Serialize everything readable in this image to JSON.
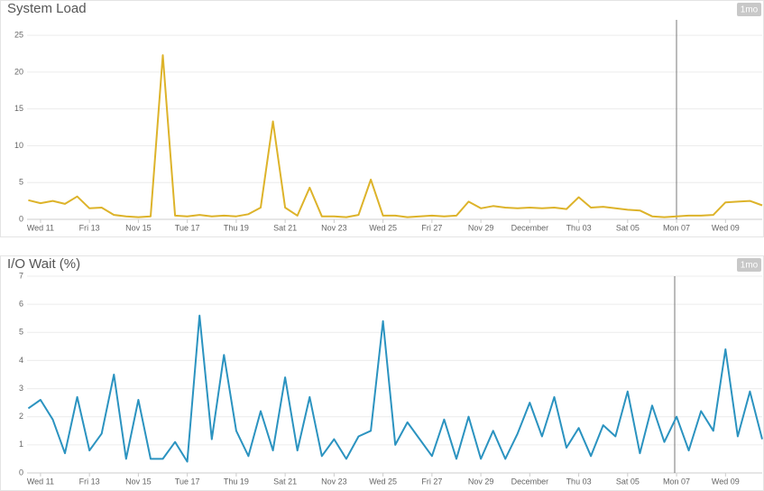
{
  "chart_data": [
    {
      "type": "line",
      "title": "System Load",
      "range_label": "1mo",
      "color": "#ddb32a",
      "grid": true,
      "x": [
        -0.5,
        0,
        0.5,
        1,
        1.5,
        2,
        2.5,
        3,
        3.5,
        4,
        4.5,
        5,
        5.5,
        6,
        6.5,
        7,
        7.5,
        8,
        8.5,
        9,
        9.5,
        10,
        10.5,
        11,
        11.5,
        12,
        12.5,
        13,
        13.5,
        14,
        14.5,
        15,
        15.5,
        16,
        16.5,
        17,
        17.5,
        18,
        18.5,
        19,
        19.5,
        20,
        20.5,
        21,
        21.5,
        22,
        22.5,
        23,
        23.5,
        24,
        24.5,
        25,
        25.5,
        26,
        26.5,
        27,
        27.5,
        28,
        28.5,
        29,
        29.5
      ],
      "values": [
        2.6,
        2.2,
        2.5,
        2.1,
        3.1,
        1.5,
        1.6,
        0.6,
        0.4,
        0.3,
        0.4,
        22.3,
        0.5,
        0.4,
        0.6,
        0.4,
        0.5,
        0.4,
        0.7,
        1.6,
        13.3,
        1.6,
        0.5,
        4.3,
        0.4,
        0.4,
        0.3,
        0.6,
        5.4,
        0.5,
        0.5,
        0.3,
        0.4,
        0.5,
        0.4,
        0.5,
        2.4,
        1.5,
        1.8,
        1.6,
        1.5,
        1.6,
        1.5,
        1.6,
        1.4,
        3.0,
        1.6,
        1.7,
        1.5,
        1.3,
        1.2,
        0.4,
        0.3,
        0.4,
        0.5,
        0.5,
        0.6,
        2.3,
        2.4,
        2.5,
        1.9
      ],
      "xlim": [
        -0.55,
        29.5
      ],
      "ylim": [
        0,
        27.1
      ],
      "yticks": [
        0,
        5,
        10,
        15,
        20,
        25
      ],
      "xticks": [
        {
          "value": 0,
          "label": "Wed 11"
        },
        {
          "value": 2,
          "label": "Fri 13"
        },
        {
          "value": 4,
          "label": "Nov 15"
        },
        {
          "value": 6,
          "label": "Tue 17"
        },
        {
          "value": 8,
          "label": "Thu 19"
        },
        {
          "value": 10,
          "label": "Sat 21"
        },
        {
          "value": 12,
          "label": "Nov 23"
        },
        {
          "value": 14,
          "label": "Wed 25"
        },
        {
          "value": 16,
          "label": "Fri 27"
        },
        {
          "value": 18,
          "label": "Nov 29"
        },
        {
          "value": 20,
          "label": "December"
        },
        {
          "value": 22,
          "label": "Thu 03"
        },
        {
          "value": 24,
          "label": "Sat 05"
        },
        {
          "value": 26,
          "label": "Mon 07"
        },
        {
          "value": 28,
          "label": "Wed 09"
        }
      ]
    },
    {
      "type": "line",
      "title": "I/O Wait (%)",
      "range_label": "1mo",
      "color": "#2b93c0",
      "grid": true,
      "x": [
        -0.5,
        0,
        0.5,
        1,
        1.5,
        2,
        2.5,
        3,
        3.5,
        4,
        4.5,
        5,
        5.5,
        6,
        6.5,
        7,
        7.5,
        8,
        8.5,
        9,
        9.5,
        10,
        10.5,
        11,
        11.5,
        12,
        12.5,
        13,
        13.5,
        14,
        14.5,
        15,
        15.5,
        16,
        16.5,
        17,
        17.5,
        18,
        18.5,
        19,
        19.5,
        20,
        20.5,
        21,
        21.5,
        22,
        22.5,
        23,
        23.5,
        24,
        24.5,
        25,
        25.5,
        26,
        26.5,
        27,
        27.5,
        28,
        28.5,
        29,
        29.5
      ],
      "values": [
        2.3,
        2.6,
        1.9,
        0.7,
        2.7,
        0.8,
        1.4,
        3.5,
        0.5,
        2.6,
        0.5,
        0.5,
        1.1,
        0.4,
        5.6,
        1.2,
        4.2,
        1.5,
        0.6,
        2.2,
        0.8,
        3.4,
        0.8,
        2.7,
        0.6,
        1.2,
        0.5,
        1.3,
        1.5,
        5.4,
        1.0,
        1.8,
        1.2,
        0.6,
        1.9,
        0.5,
        2.0,
        0.5,
        1.5,
        0.5,
        1.4,
        2.5,
        1.3,
        2.7,
        0.9,
        1.6,
        0.6,
        1.7,
        1.3,
        2.9,
        0.7,
        2.4,
        1.1,
        2.0,
        0.8,
        2.2,
        1.5,
        4.4,
        1.3,
        2.9,
        1.2
      ],
      "xlim": [
        -0.55,
        29.5
      ],
      "ylim": [
        0,
        7
      ],
      "yticks": [
        0,
        1,
        2,
        3,
        4,
        5,
        6,
        7
      ],
      "xticks": [
        {
          "value": 0,
          "label": "Wed 11"
        },
        {
          "value": 2,
          "label": "Fri 13"
        },
        {
          "value": 4,
          "label": "Nov 15"
        },
        {
          "value": 6,
          "label": "Tue 17"
        },
        {
          "value": 8,
          "label": "Thu 19"
        },
        {
          "value": 10,
          "label": "Sat 21"
        },
        {
          "value": 12,
          "label": "Nov 23"
        },
        {
          "value": 14,
          "label": "Wed 25"
        },
        {
          "value": 16,
          "label": "Fri 27"
        },
        {
          "value": 18,
          "label": "Nov 29"
        },
        {
          "value": 20,
          "label": "December"
        },
        {
          "value": 22,
          "label": "Thu 03"
        },
        {
          "value": 24,
          "label": "Sat 05"
        },
        {
          "value": 26,
          "label": "Mon 07"
        },
        {
          "value": 28,
          "label": "Wed 09"
        }
      ]
    }
  ]
}
